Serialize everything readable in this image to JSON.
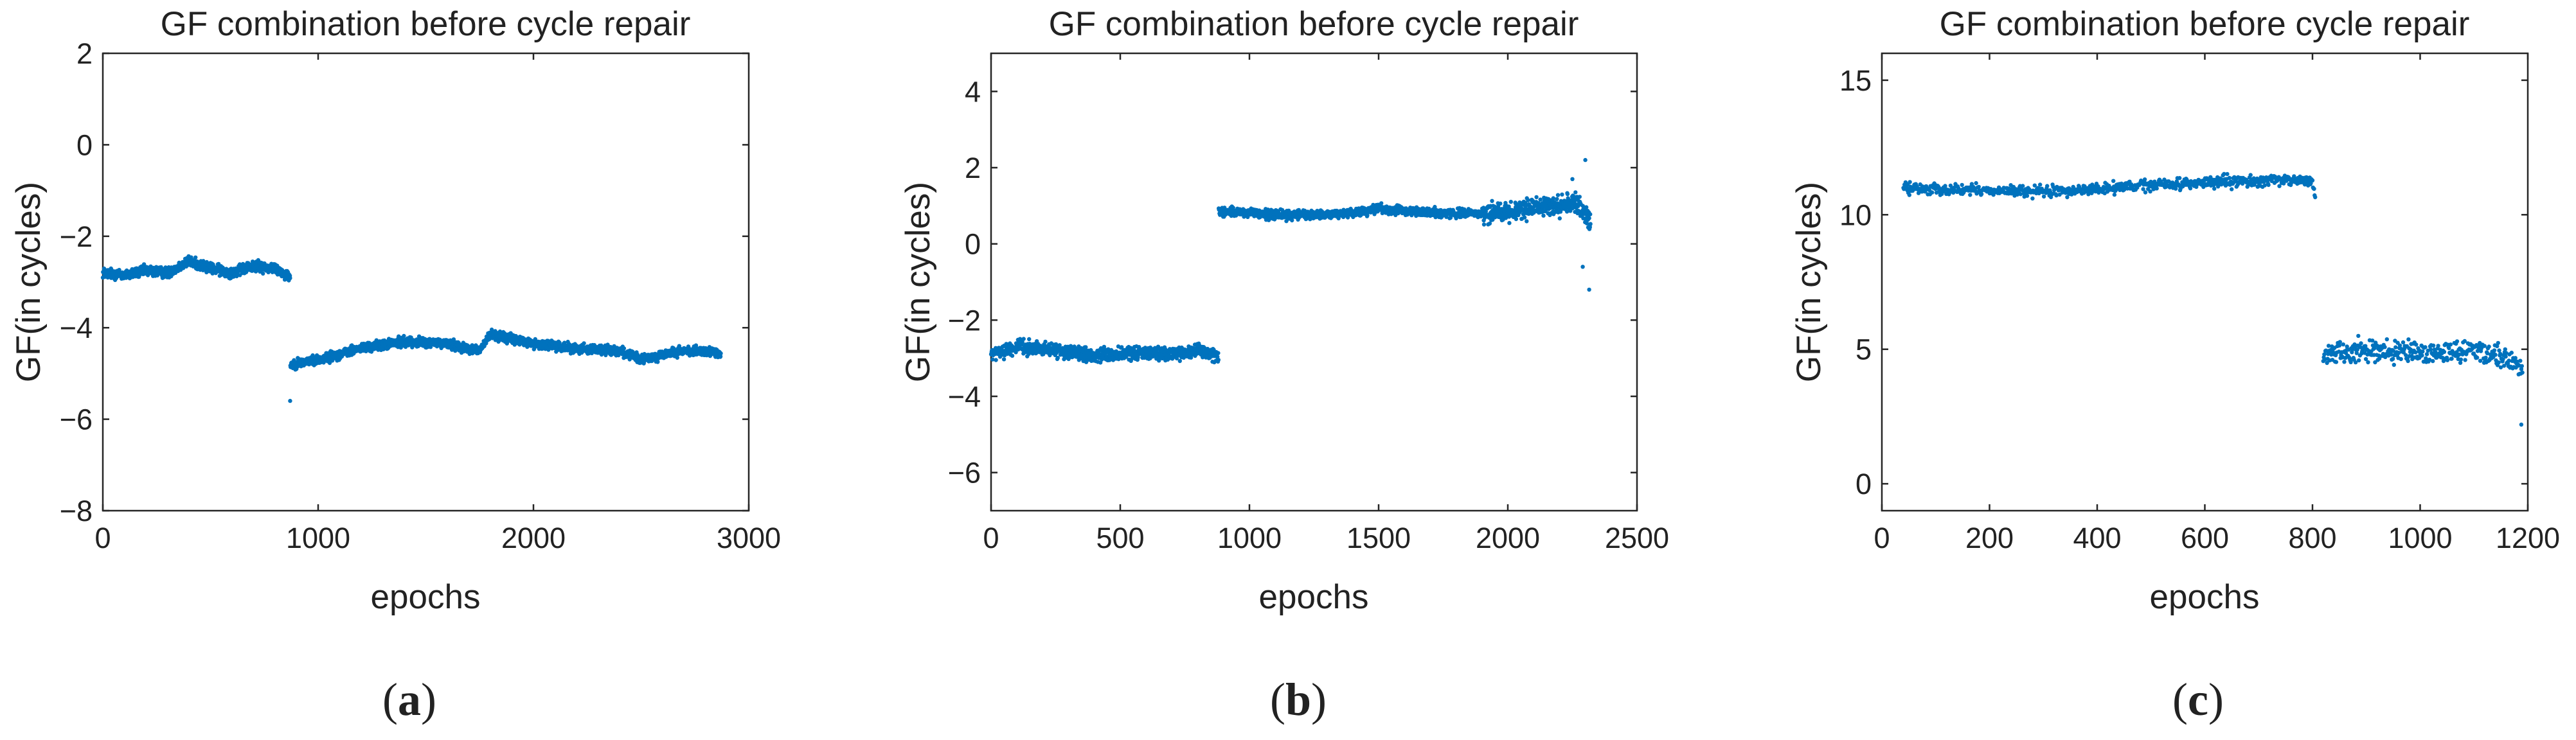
{
  "series_color": "#0072BD",
  "chart_data": [
    {
      "type": "scatter",
      "panel_label": "a",
      "title": "GF combination before cycle repair",
      "xlabel": "epochs",
      "ylabel": "GF(in cycles)",
      "xlim": [
        0,
        3000
      ],
      "ylim": [
        -8,
        2
      ],
      "xticks": [
        0,
        1000,
        2000,
        3000
      ],
      "yticks": [
        -8,
        -6,
        -4,
        -2,
        0,
        2
      ],
      "grid": false,
      "series": [
        {
          "name": "GF",
          "segments": [
            {
              "x_start": 0,
              "x_end": 870,
              "count": 870,
              "noise": 0.1,
              "trend_x": [
                0,
                100,
                200,
                300,
                400,
                500,
                600,
                700,
                800,
                870
              ],
              "trend_y": [
                -2.8,
                -2.85,
                -2.75,
                -2.8,
                -2.55,
                -2.7,
                -2.8,
                -2.65,
                -2.7,
                -2.9
              ]
            },
            {
              "x_start": 871,
              "x_end": 2870,
              "count": 1980,
              "noise": 0.09,
              "trend_x": [
                871,
                1000,
                1200,
                1400,
                1600,
                1750,
                1800,
                2000,
                2200,
                2400,
                2500,
                2700,
                2870
              ],
              "trend_y": [
                -4.8,
                -4.7,
                -4.45,
                -4.3,
                -4.35,
                -4.5,
                -4.15,
                -4.35,
                -4.45,
                -4.5,
                -4.7,
                -4.5,
                -4.55
              ]
            }
          ],
          "outliers": [
            {
              "x": 870,
              "y": -5.6
            }
          ]
        }
      ]
    },
    {
      "type": "scatter",
      "panel_label": "b",
      "title": "GF combination before cycle repair",
      "xlabel": "epochs",
      "ylabel": "GF(in cycles)",
      "xlim": [
        0,
        2500
      ],
      "ylim": [
        -7,
        5
      ],
      "xticks": [
        0,
        500,
        1000,
        1500,
        2000,
        2500
      ],
      "yticks": [
        -6,
        -4,
        -2,
        0,
        2,
        4
      ],
      "grid": false,
      "series": [
        {
          "name": "GF",
          "segments": [
            {
              "x_start": 0,
              "x_end": 880,
              "count": 880,
              "noise": 0.15,
              "trend_x": [
                0,
                100,
                200,
                300,
                400,
                500,
                600,
                700,
                800,
                880
              ],
              "trend_y": [
                -2.9,
                -2.7,
                -2.75,
                -2.85,
                -2.95,
                -2.9,
                -2.85,
                -2.9,
                -2.8,
                -2.95
              ]
            },
            {
              "x_start": 881,
              "x_end": 1900,
              "count": 1000,
              "noise": 0.1,
              "trend_x": [
                881,
                1000,
                1200,
                1400,
                1500,
                1600,
                1800,
                1900
              ],
              "trend_y": [
                0.85,
                0.8,
                0.75,
                0.8,
                0.95,
                0.85,
                0.8,
                0.8
              ]
            },
            {
              "x_start": 1901,
              "x_end": 2320,
              "count": 420,
              "noise": 0.22,
              "trend_x": [
                1901,
                2000,
                2100,
                2200,
                2260,
                2320
              ],
              "trend_y": [
                0.8,
                0.85,
                0.95,
                1.0,
                1.1,
                0.6
              ]
            }
          ],
          "outliers": [
            {
              "x": 2315,
              "y": -1.2
            },
            {
              "x": 2300,
              "y": 2.2
            },
            {
              "x": 2290,
              "y": -0.6
            },
            {
              "x": 2250,
              "y": 1.7
            }
          ]
        }
      ]
    },
    {
      "type": "scatter",
      "panel_label": "c",
      "title": "GF combination before cycle repair",
      "xlabel": "epochs",
      "ylabel": "GF(in cycles)",
      "xlim": [
        0,
        1200
      ],
      "ylim": [
        -1,
        16
      ],
      "xticks": [
        0,
        200,
        400,
        600,
        800,
        1000,
        1200
      ],
      "yticks": [
        0,
        5,
        10,
        15
      ],
      "grid": false,
      "series": [
        {
          "name": "GF",
          "segments": [
            {
              "x_start": 40,
              "x_end": 805,
              "count": 760,
              "noise": 0.18,
              "trend_x": [
                40,
                100,
                200,
                300,
                400,
                500,
                600,
                700,
                800,
                805
              ],
              "trend_y": [
                11.0,
                10.95,
                10.9,
                10.85,
                10.95,
                11.1,
                11.2,
                11.25,
                11.3,
                10.6
              ]
            },
            {
              "x_start": 820,
              "x_end": 1190,
              "count": 370,
              "noise": 0.35,
              "trend_x": [
                820,
                900,
                1000,
                1100,
                1150,
                1190
              ],
              "trend_y": [
                4.8,
                5.0,
                4.8,
                5.0,
                4.8,
                4.2
              ]
            }
          ],
          "outliers": [
            {
              "x": 1188,
              "y": 2.2
            }
          ]
        }
      ]
    }
  ]
}
